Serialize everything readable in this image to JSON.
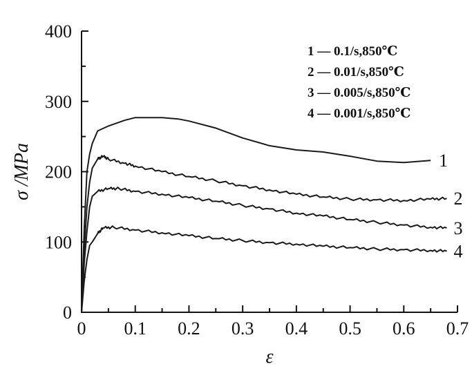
{
  "chart_data": {
    "type": "line",
    "xlabel": "ε",
    "ylabel": "σ /MPa",
    "xlim": [
      0,
      0.7
    ],
    "ylim": [
      0,
      400
    ],
    "xticks": [
      "0",
      "0.1",
      "0.2",
      "0.3",
      "0.4",
      "0.5",
      "0.6",
      "0.7"
    ],
    "yticks": [
      "0",
      "100",
      "200",
      "300",
      "400"
    ],
    "xtick_values": [
      0,
      0.1,
      0.2,
      0.3,
      0.4,
      0.5,
      0.6,
      0.7
    ],
    "ytick_values": [
      0,
      100,
      200,
      300,
      400
    ],
    "grid": false,
    "legend": {
      "position": "top-right",
      "entries": [
        "1 — 0.1/s,850℃",
        "2 — 0.01/s,850℃",
        "3 — 0.005/s,850℃",
        "4 — 0.001/s,850℃"
      ]
    },
    "series": [
      {
        "name": "0.1/s,850℃",
        "label": "1",
        "x": [
          0,
          0.005,
          0.01,
          0.015,
          0.02,
          0.03,
          0.05,
          0.08,
          0.1,
          0.12,
          0.15,
          0.18,
          0.2,
          0.25,
          0.3,
          0.35,
          0.4,
          0.45,
          0.5,
          0.55,
          0.6,
          0.65
        ],
        "y": [
          0,
          120,
          200,
          225,
          240,
          258,
          265,
          273,
          277,
          277,
          277,
          275,
          272,
          262,
          248,
          237,
          231,
          228,
          222,
          215,
          213,
          216
        ]
      },
      {
        "name": "0.01/s,850℃",
        "label": "2",
        "x": [
          0,
          0.005,
          0.01,
          0.015,
          0.02,
          0.03,
          0.04,
          0.05,
          0.08,
          0.1,
          0.15,
          0.2,
          0.25,
          0.3,
          0.35,
          0.4,
          0.45,
          0.5,
          0.55,
          0.6,
          0.65,
          0.68
        ],
        "y": [
          0,
          90,
          150,
          185,
          205,
          218,
          222,
          218,
          212,
          208,
          200,
          193,
          187,
          180,
          174,
          168,
          164,
          161,
          160,
          159,
          161,
          162
        ]
      },
      {
        "name": "0.005/s,850℃",
        "label": "3",
        "x": [
          0,
          0.005,
          0.01,
          0.015,
          0.02,
          0.03,
          0.05,
          0.07,
          0.1,
          0.15,
          0.2,
          0.25,
          0.3,
          0.35,
          0.4,
          0.45,
          0.5,
          0.55,
          0.6,
          0.65,
          0.68
        ],
        "y": [
          0,
          70,
          115,
          150,
          165,
          172,
          176,
          176,
          172,
          168,
          163,
          158,
          152,
          147,
          141,
          137,
          132,
          128,
          124,
          121,
          120
        ]
      },
      {
        "name": "0.001/s,850℃",
        "label": "4",
        "x": [
          0,
          0.005,
          0.01,
          0.015,
          0.02,
          0.03,
          0.04,
          0.06,
          0.1,
          0.15,
          0.2,
          0.25,
          0.3,
          0.35,
          0.4,
          0.45,
          0.5,
          0.55,
          0.6,
          0.65,
          0.68
        ],
        "y": [
          0,
          45,
          75,
          95,
          100,
          112,
          120,
          121,
          117,
          113,
          109,
          105,
          102,
          99,
          97,
          94,
          92,
          90,
          89,
          88,
          87
        ]
      }
    ]
  }
}
